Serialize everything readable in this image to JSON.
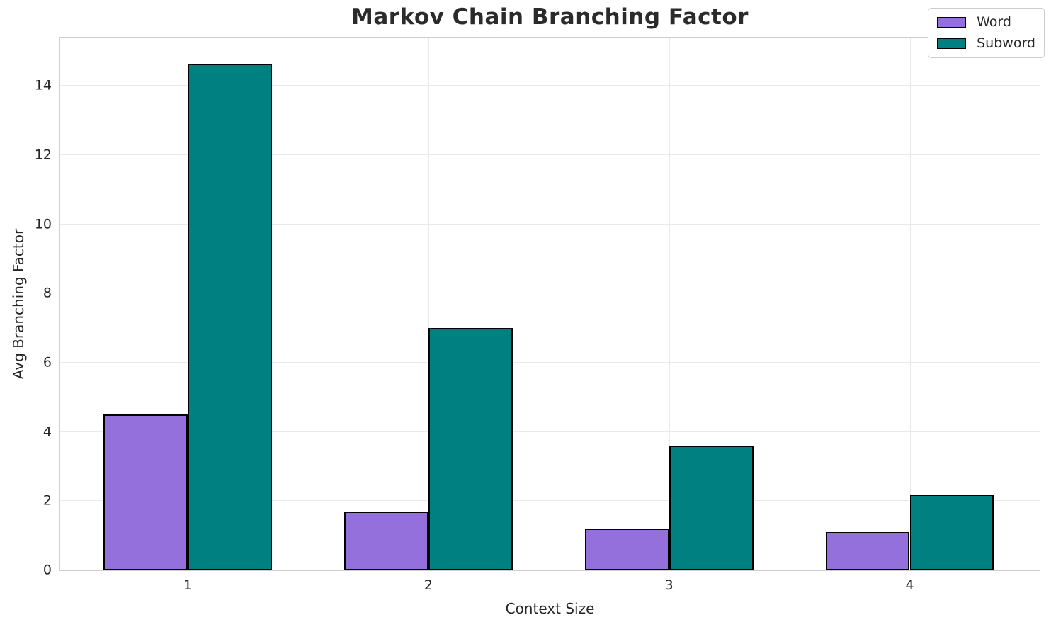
{
  "chart_data": {
    "type": "bar",
    "title": "Markov Chain Branching Factor",
    "xlabel": "Context Size",
    "ylabel": "Avg Branching Factor",
    "categories": [
      "1",
      "2",
      "3",
      "4"
    ],
    "x_values": [
      1,
      2,
      3,
      4
    ],
    "series": [
      {
        "name": "Word",
        "color": "#9370DB",
        "values": [
          4.5,
          1.7,
          1.2,
          1.1
        ]
      },
      {
        "name": "Subword",
        "color": "#008080",
        "values": [
          14.65,
          7.0,
          3.6,
          2.2
        ]
      }
    ],
    "bar_edge_color": "#000000",
    "bar_width_units": 0.35,
    "xlim": [
      0.47,
      4.54
    ],
    "ylim": [
      0,
      15.4
    ],
    "yticks": [
      0,
      2,
      4,
      6,
      8,
      10,
      12,
      14
    ],
    "grid": true,
    "gridline_color": "#e9e9e9",
    "spine_color": "#cfcfcf",
    "text_color": "#262626",
    "legend": {
      "position": "upper right",
      "entries": [
        "Word",
        "Subword"
      ]
    }
  }
}
